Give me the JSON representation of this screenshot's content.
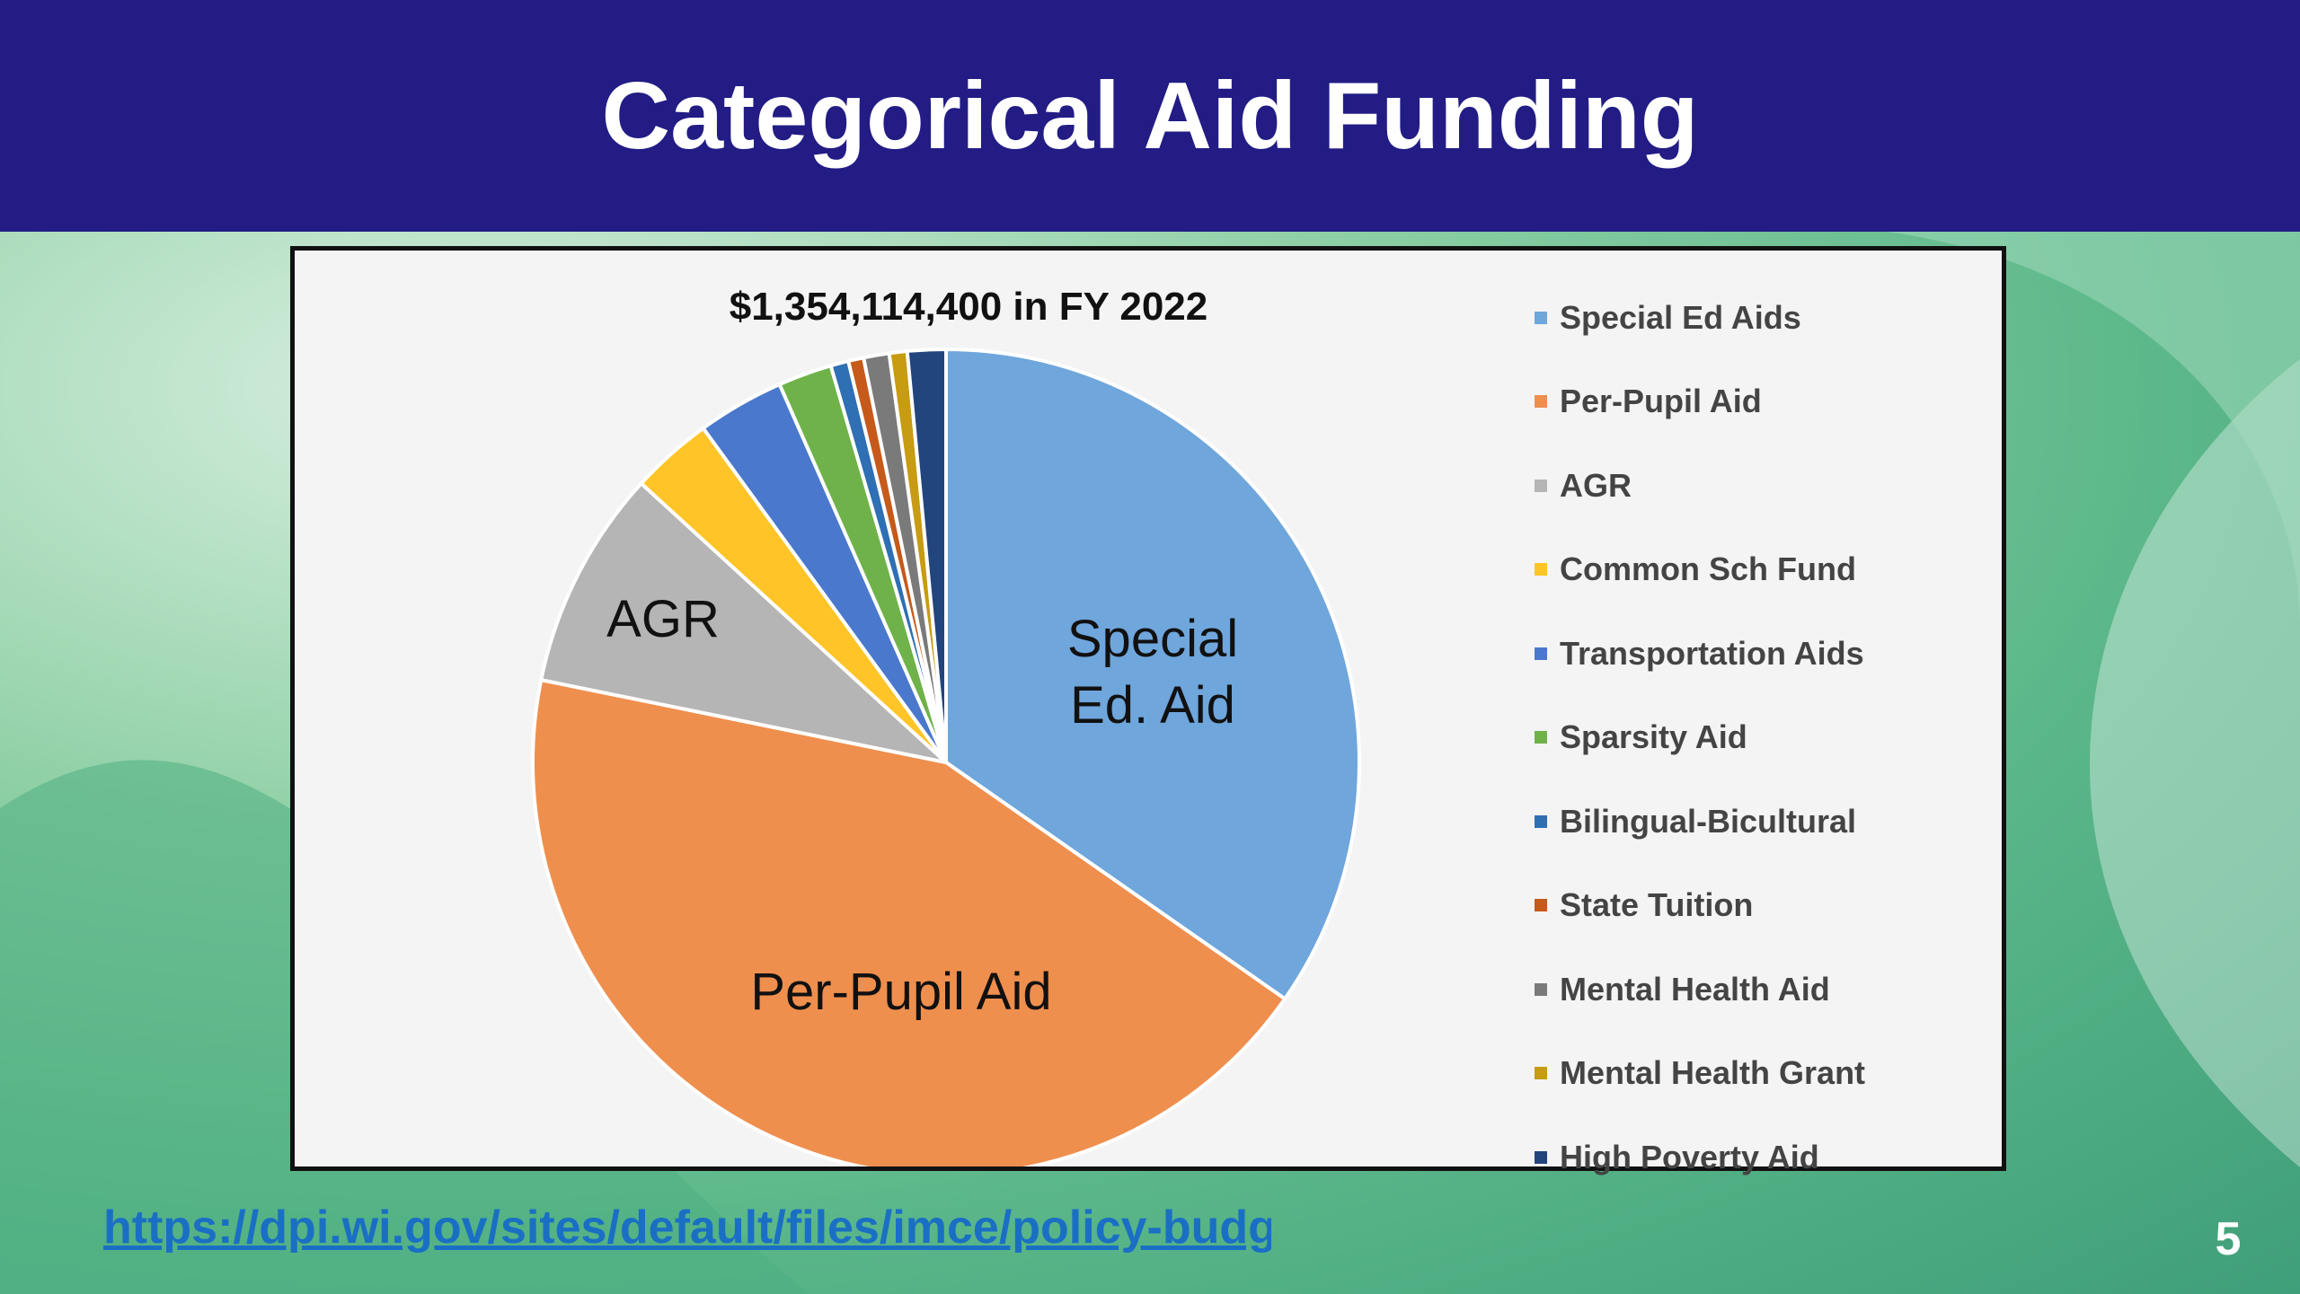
{
  "slide": {
    "title": "Categorical Aid Funding",
    "source_url": "https://dpi.wi.gov/sites/default/files/imce/policy-budget/pdf/K12_School_Aids_Act_58_Final.pdf",
    "page_number": "5"
  },
  "chart_data": {
    "type": "pie",
    "title": "$1,354,114,400 in FY 2022",
    "total": 1354114400,
    "legend_placement": "right",
    "slices": [
      {
        "name": "Special Ed Aids",
        "value": 34.7,
        "label": "Special\nEd. Aid",
        "color": "#6fa6dc"
      },
      {
        "name": "Per-Pupil Aid",
        "value": 43.5,
        "label": "Per-Pupil Aid",
        "color": "#ef8f4e"
      },
      {
        "name": "AGR",
        "value": 8.6,
        "label": "AGR",
        "color": "#b5b5b5"
      },
      {
        "name": "Common Sch Fund",
        "value": 3.2,
        "label": "",
        "color": "#ffc427"
      },
      {
        "name": "Transportation Aids",
        "value": 3.4,
        "label": "",
        "color": "#4a78cc"
      },
      {
        "name": "Sparsity Aid",
        "value": 2.1,
        "label": "",
        "color": "#6fb24a"
      },
      {
        "name": "Bilingual-Bicultural",
        "value": 0.7,
        "label": "",
        "color": "#2f6fb3"
      },
      {
        "name": "State Tuition",
        "value": 0.6,
        "label": "",
        "color": "#c55a1a"
      },
      {
        "name": "Mental Health Aid",
        "value": 1.0,
        "label": "",
        "color": "#7a7a7a"
      },
      {
        "name": "Mental Health Grant",
        "value": 0.7,
        "label": "",
        "color": "#c79b12"
      },
      {
        "name": "High Poverty Aid",
        "value": 1.5,
        "label": "",
        "color": "#23457e"
      }
    ]
  }
}
